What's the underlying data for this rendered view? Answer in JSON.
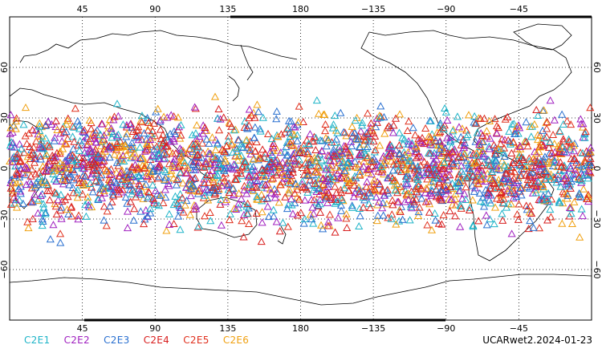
{
  "map": {
    "lon_ticks": [
      "45",
      "90",
      "135",
      "180",
      "−135",
      "−90",
      "−45"
    ],
    "lat_ticks": [
      "60",
      "30",
      "0",
      "−30",
      "−60"
    ],
    "lon_values": [
      45,
      90,
      135,
      180,
      225,
      270,
      315
    ],
    "lat_values": [
      60,
      30,
      0,
      -30,
      -60
    ],
    "lon_range": [
      0,
      360
    ],
    "lat_range": [
      -90,
      90
    ],
    "grid": "dotted",
    "marker": "triangle-open",
    "point_lat_band": [
      -45,
      45
    ]
  },
  "legend": {
    "items": [
      {
        "label": "C2E1",
        "color": "#1fb4c8"
      },
      {
        "label": "C2E2",
        "color": "#a020c0"
      },
      {
        "label": "C2E3",
        "color": "#2a70d0"
      },
      {
        "label": "C2E4",
        "color": "#d81e1e"
      },
      {
        "label": "C2E5",
        "color": "#e0301e"
      },
      {
        "label": "C2E6",
        "color": "#f0a010"
      }
    ]
  },
  "credit": "UCARwet2.2024-01-23"
}
